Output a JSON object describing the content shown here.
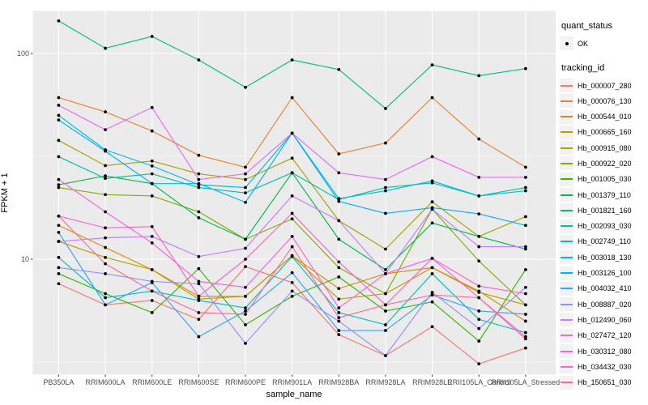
{
  "chart_data": {
    "type": "line",
    "title": "",
    "xlabel": "sample_name",
    "ylabel": "FPKM + 1",
    "y_scale": "log10",
    "y_tick_labels": [
      "100",
      "10"
    ],
    "y_tick_values": [
      100,
      10
    ],
    "y_minor_values": [
      31.623,
      3.1623
    ],
    "ylim": [
      2.75,
      160
    ],
    "grid": true,
    "panel_bg": "#EBEBEB",
    "grid_color": "#FFFFFF",
    "point_color": "#000000",
    "tick_color": "#333333",
    "categories": [
      "PB350LA",
      "RRIM600LA",
      "RRIM600LE",
      "RRIM600SE",
      "RRIM600PE",
      "RRIM901LA",
      "RRIM928BA",
      "RRIM928LA",
      "RRIM928LE",
      "RRII105LA_Control",
      "RRII105LA_Stressed"
    ],
    "series": [
      {
        "name": "Hb_000007_280",
        "color": "#F8766D",
        "values": [
          7.6,
          6.0,
          6.3,
          5.1,
          9.2,
          7.7,
          4.3,
          3.4,
          4.7,
          3.1,
          3.7
        ]
      },
      {
        "name": "Hb_000076_130",
        "color": "#EA8331",
        "values": [
          61,
          52,
          42,
          32,
          28,
          61,
          32.5,
          36.7,
          61,
          38.4,
          28
        ]
      },
      {
        "name": "Hb_000544_010",
        "color": "#D89000",
        "values": [
          14.6,
          11.4,
          8.9,
          6.6,
          6.6,
          10.4,
          7.2,
          8.5,
          9.1,
          7.0,
          5.0
        ]
      },
      {
        "name": "Hb_000665_160",
        "color": "#C09B00",
        "values": [
          12.2,
          10.2,
          8.9,
          6.4,
          6.6,
          10.4,
          6.4,
          6.8,
          9.1,
          6.9,
          6.0
        ]
      },
      {
        "name": "Hb_000915_080",
        "color": "#A3A500",
        "values": [
          37.8,
          28.5,
          30,
          26,
          24.4,
          31,
          15.4,
          11.2,
          19,
          12.9,
          16.1
        ]
      },
      {
        "name": "Hb_000922_020",
        "color": "#7CAE00",
        "values": [
          22.3,
          20.6,
          20.3,
          17,
          12.5,
          15.7,
          9.1,
          6.8,
          17.5,
          9.8,
          6.0
        ]
      },
      {
        "name": "Hb_001005_030",
        "color": "#39B600",
        "values": [
          8.5,
          6.8,
          5.5,
          9.0,
          4.8,
          6.6,
          8.2,
          5.6,
          6.2,
          4.0,
          8.9
        ]
      },
      {
        "name": "Hb_001379_110",
        "color": "#00BB4E",
        "values": [
          23,
          25.4,
          23.3,
          15.9,
          12.5,
          26.3,
          12.5,
          8.9,
          15.0,
          12.9,
          11.2
        ]
      },
      {
        "name": "Hb_001821_160",
        "color": "#00BF7D",
        "values": [
          144,
          106,
          121,
          93,
          68.5,
          93,
          83.6,
          54,
          88,
          78,
          84.4
        ]
      },
      {
        "name": "Hb_002093_030",
        "color": "#00C1A3",
        "values": [
          31.5,
          24.7,
          26,
          22.3,
          21,
          26.3,
          19.5,
          22.3,
          23.5,
          20.3,
          22.3
        ]
      },
      {
        "name": "Hb_002749_110",
        "color": "#00BFC4",
        "values": [
          10.2,
          6.5,
          7.0,
          6.3,
          5.8,
          10.3,
          5.5,
          4.8,
          8.5,
          5.1,
          4.4
        ]
      },
      {
        "name": "Hb_003018_130",
        "color": "#00BAE0",
        "values": [
          50,
          34,
          28.4,
          23,
          22.3,
          41,
          19.7,
          21.5,
          24,
          20.3,
          21.5
        ]
      },
      {
        "name": "Hb_003126_100",
        "color": "#00B0F6",
        "values": [
          47.5,
          33.5,
          23.3,
          23.3,
          18.9,
          41,
          19.1,
          16.7,
          17.8,
          16.6,
          14.6
        ]
      },
      {
        "name": "Hb_004032_410",
        "color": "#35A2FF",
        "values": [
          13.5,
          6.0,
          7.7,
          4.2,
          5.6,
          8.6,
          4.5,
          4.5,
          6.7,
          5.6,
          5.4
        ]
      },
      {
        "name": "Hb_008887_020",
        "color": "#9590FF",
        "values": [
          9.1,
          8.5,
          7.8,
          7.6,
          3.9,
          7.0,
          5.0,
          3.4,
          6.9,
          4.6,
          7.3
        ]
      },
      {
        "name": "Hb_012490_060",
        "color": "#C77CFF",
        "values": [
          12.2,
          12.7,
          12.9,
          10.3,
          11.3,
          20.3,
          15.4,
          8.5,
          17.5,
          11.5,
          11.5
        ]
      },
      {
        "name": "Hb_027472_120",
        "color": "#E76BF3",
        "values": [
          56,
          42.6,
          54.6,
          24.4,
          26,
          41,
          26.3,
          24.4,
          31.5,
          25,
          25
        ]
      },
      {
        "name": "Hb_030312_080",
        "color": "#FA62DB",
        "values": [
          24.4,
          17,
          12,
          7.8,
          7.3,
          12.9,
          5.8,
          8.5,
          10.1,
          6.5,
          4.2
        ]
      },
      {
        "name": "Hb_034432_030",
        "color": "#FF61CC",
        "values": [
          16.2,
          14.2,
          14.4,
          6.6,
          10.0,
          16.7,
          9.7,
          6.0,
          10.1,
          7.4,
          6.8
        ]
      },
      {
        "name": "Hb_150651_030",
        "color": "#FF6A98",
        "values": [
          16.2,
          9.5,
          7.0,
          5.5,
          5.4,
          11.5,
          5.2,
          6.0,
          6.7,
          6.5,
          4.1
        ]
      }
    ],
    "legend_position": "right"
  },
  "legend": {
    "quant_status_title": "quant_status",
    "ok_label": "OK",
    "tracking_id_title": "tracking_id"
  }
}
